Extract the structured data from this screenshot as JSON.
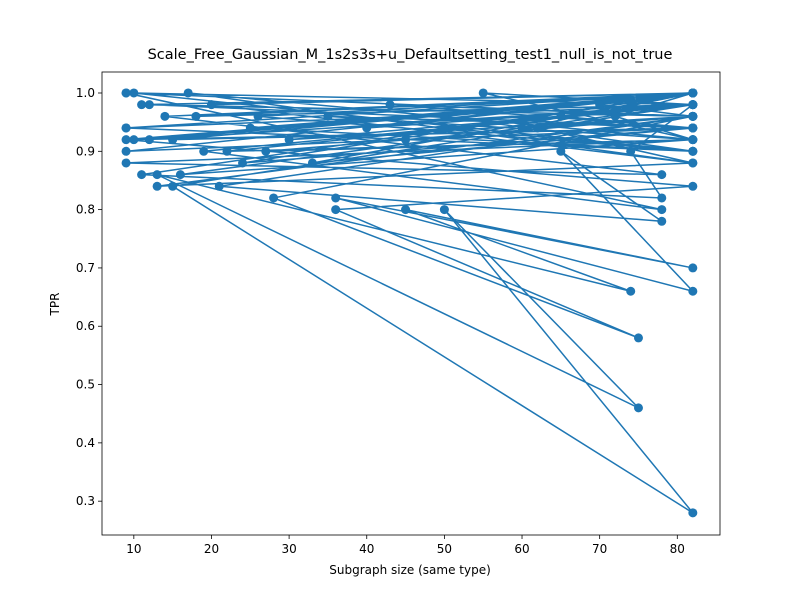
{
  "chart_data": {
    "type": "line",
    "title": "Scale_Free_Gaussian_M_1s2s3s+u_Defaultsetting_test1_null_is_not_true",
    "x_label": "Subgraph size (same type)",
    "y_label": "TPR",
    "color": "#1f77b4",
    "markers": true,
    "x": [
      9,
      82,
      12,
      82,
      15,
      82,
      18,
      82,
      22,
      82,
      9,
      78,
      14,
      82,
      25,
      82,
      10,
      82,
      30,
      82,
      13,
      82,
      20,
      82,
      9,
      82,
      35,
      82,
      16,
      82,
      40,
      82,
      11,
      82,
      45,
      82,
      24,
      82,
      50,
      82,
      9,
      82,
      55,
      82,
      27,
      82,
      60,
      82,
      12,
      82,
      65,
      82,
      33,
      82,
      70,
      82,
      9,
      78,
      19,
      82,
      15,
      82,
      50,
      75,
      13,
      74,
      45,
      82,
      36,
      82,
      65,
      78,
      21,
      82,
      28,
      75,
      36,
      82,
      9,
      82,
      11,
      78,
      74,
      82,
      50,
      82,
      26,
      82,
      10,
      82,
      43,
      82,
      62,
      82,
      17,
      82,
      72,
      82,
      9,
      82
    ],
    "values": [
      1.0,
      0.96,
      0.98,
      0.94,
      0.92,
      1.0,
      0.96,
      0.98,
      0.9,
      0.92,
      0.88,
      0.86,
      0.96,
      1.0,
      0.94,
      0.9,
      1.0,
      0.98,
      0.92,
      0.96,
      0.84,
      0.88,
      0.98,
      1.0,
      0.9,
      0.94,
      0.96,
      0.92,
      0.86,
      0.98,
      0.94,
      1.0,
      0.98,
      0.96,
      0.92,
      0.94,
      0.88,
      1.0,
      0.96,
      0.9,
      0.94,
      0.98,
      1.0,
      0.92,
      0.9,
      0.96,
      0.94,
      1.0,
      0.92,
      0.98,
      0.96,
      0.94,
      0.88,
      1.0,
      0.98,
      0.96,
      1.0,
      0.8,
      0.9,
      0.98,
      0.84,
      0.28,
      0.8,
      0.46,
      0.86,
      0.66,
      0.8,
      0.7,
      0.82,
      0.66,
      0.9,
      0.78,
      0.84,
      0.96,
      0.82,
      0.58,
      0.8,
      0.84,
      0.92,
      1.0,
      0.86,
      0.82,
      0.9,
      0.98,
      0.94,
      0.9,
      0.96,
      1.0,
      0.92,
      0.94,
      0.98,
      0.96,
      0.94,
      0.88,
      1.0,
      0.92,
      0.96,
      1.0,
      0.94,
      0.98
    ],
    "xlim": [
      5.9,
      85.5
    ],
    "ylim": [
      0.242,
      1.036
    ],
    "xticks": [
      10,
      20,
      30,
      40,
      50,
      60,
      70,
      80
    ],
    "yticks": [
      0.3,
      0.4,
      0.5,
      0.6,
      0.7,
      0.8,
      0.9,
      {
        "value": 1.0,
        "label": "1.0"
      }
    ]
  }
}
